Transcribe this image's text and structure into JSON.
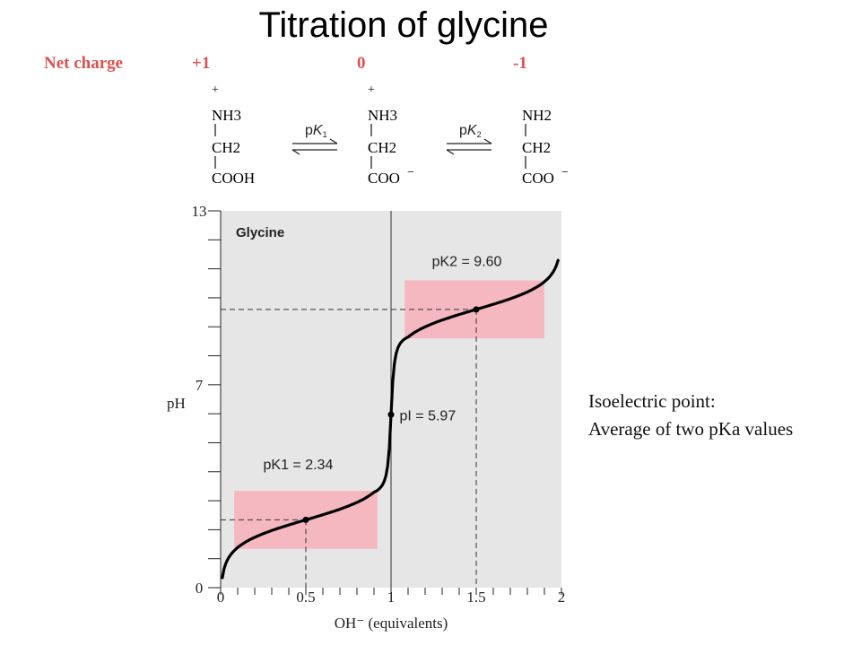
{
  "title": "Titration of glycine",
  "net_charge": {
    "label": "Net charge",
    "values": [
      "+1",
      "0",
      "-1"
    ],
    "color": "#d9534f"
  },
  "species": [
    {
      "amine": "NH3",
      "amine_charge": "+",
      "backbone": "CH2",
      "acid": "COOH"
    },
    {
      "amine": "NH3",
      "amine_charge": "+",
      "backbone": "CH2",
      "acid": "COO",
      "acid_charge": "−"
    },
    {
      "amine": "NH2",
      "backbone": "CH2",
      "acid": "COO",
      "acid_charge": "−"
    }
  ],
  "equilibria": [
    {
      "symbol": "p",
      "sub_symbol": "K",
      "index": "1"
    },
    {
      "symbol": "p",
      "sub_symbol": "K",
      "index": "2"
    }
  ],
  "note": {
    "line1": "Isoelectric point:",
    "line2": "Average of two pKa values"
  },
  "chart_data": {
    "type": "line",
    "title": "Glycine",
    "xlabel": "OH⁻ (equivalents)",
    "ylabel": "pH",
    "xlim": [
      0,
      2
    ],
    "ylim": [
      0,
      13
    ],
    "x_ticks": [
      "0",
      "0.5",
      "1",
      "1.5",
      "2"
    ],
    "x_tick_values": [
      0,
      0.5,
      1,
      1.5,
      2
    ],
    "y_ticks": [
      "0",
      "7",
      "13"
    ],
    "y_tick_values": [
      0,
      7,
      13
    ],
    "pK1": 2.34,
    "pK2": 9.6,
    "pI": 5.97,
    "labels": {
      "pK1": "pK1 = 2.34",
      "pK2": "pK2 = 9.60",
      "pI": "pI = 5.97"
    },
    "buffer_regions": [
      {
        "x": [
          0.08,
          0.92
        ],
        "y": [
          1.34,
          3.34
        ]
      },
      {
        "x": [
          1.08,
          1.9
        ],
        "y": [
          8.6,
          10.6
        ]
      }
    ],
    "key_points": [
      {
        "x": 0.5,
        "y": 2.34
      },
      {
        "x": 1.0,
        "y": 5.97
      },
      {
        "x": 1.5,
        "y": 9.6
      }
    ],
    "colors": {
      "plot_bg": "#e6e6e6",
      "buffer": "#f5b8c0",
      "curve": "#000000"
    }
  }
}
